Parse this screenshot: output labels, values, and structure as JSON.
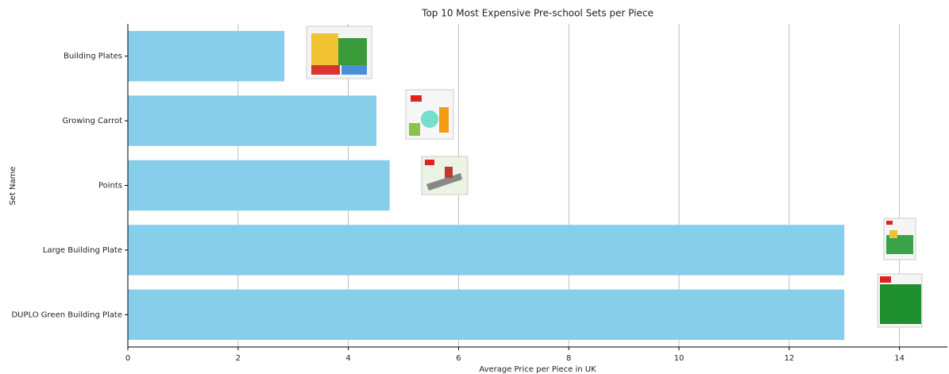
{
  "chart_data": {
    "type": "barh",
    "title": "Top 10 Most Expensive Pre-school Sets per Piece",
    "xlabel": "Average Price per Piece in UK",
    "ylabel": "Set Name",
    "categories": [
      "Building Plates",
      "Growing Carrot",
      "Points",
      "Large Building Plate",
      "DUPLO Green Building Plate"
    ],
    "values": [
      2.84,
      4.51,
      4.75,
      13.0,
      13.0
    ],
    "color": "#87ceeb",
    "xlim": [
      0,
      14.87
    ],
    "xticks": [
      0,
      2,
      4,
      6,
      8,
      10,
      12,
      14
    ],
    "grid": true
  }
}
